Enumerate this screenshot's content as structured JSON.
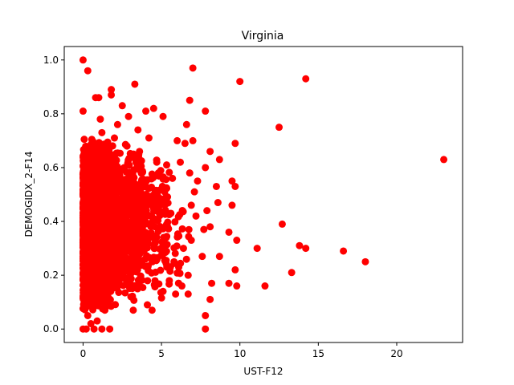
{
  "chart_data": {
    "type": "scatter",
    "title": "Virginia",
    "xlabel": "UST-F12",
    "ylabel": "DEMOGIDX_2-F14",
    "xlim": [
      -1.2,
      24.2
    ],
    "ylim": [
      -0.05,
      1.05
    ],
    "xticks": [
      0,
      5,
      10,
      15,
      20
    ],
    "yticks": [
      0.0,
      0.2,
      0.4,
      0.6,
      0.8,
      1.0
    ],
    "grid": false,
    "legend": "none",
    "marker_color": "#ff0000",
    "series": [
      {
        "points": [
          [
            0.0,
            1.0
          ],
          [
            0.3,
            0.96
          ],
          [
            0.0,
            0.81
          ],
          [
            0.8,
            0.86
          ],
          [
            1.0,
            0.86
          ],
          [
            1.8,
            0.89
          ],
          [
            1.8,
            0.87
          ],
          [
            3.3,
            0.91
          ],
          [
            7.0,
            0.97
          ],
          [
            10.0,
            0.92
          ],
          [
            14.2,
            0.93
          ],
          [
            6.8,
            0.85
          ],
          [
            12.5,
            0.75
          ],
          [
            23.0,
            0.63
          ],
          [
            7.8,
            0.81
          ],
          [
            6.6,
            0.76
          ],
          [
            9.7,
            0.69
          ],
          [
            7.0,
            0.7
          ],
          [
            8.1,
            0.66
          ],
          [
            8.7,
            0.63
          ],
          [
            9.5,
            0.55
          ],
          [
            9.7,
            0.53
          ],
          [
            8.5,
            0.53
          ],
          [
            8.6,
            0.47
          ],
          [
            9.5,
            0.46
          ],
          [
            7.9,
            0.44
          ],
          [
            8.1,
            0.38
          ],
          [
            9.3,
            0.36
          ],
          [
            9.8,
            0.33
          ],
          [
            9.7,
            0.22
          ],
          [
            8.7,
            0.27
          ],
          [
            12.7,
            0.39
          ],
          [
            11.1,
            0.3
          ],
          [
            13.8,
            0.31
          ],
          [
            14.2,
            0.3
          ],
          [
            13.3,
            0.21
          ],
          [
            16.6,
            0.29
          ],
          [
            18.0,
            0.25
          ],
          [
            11.6,
            0.16
          ],
          [
            9.8,
            0.16
          ],
          [
            9.3,
            0.17
          ],
          [
            8.2,
            0.17
          ],
          [
            8.1,
            0.11
          ],
          [
            7.8,
            0.05
          ],
          [
            7.8,
            0.0
          ],
          [
            0.0,
            0.0
          ],
          [
            0.2,
            0.0
          ],
          [
            0.7,
            0.0
          ],
          [
            1.2,
            0.0
          ],
          [
            1.7,
            0.0
          ],
          [
            0.5,
            0.02
          ],
          [
            0.9,
            0.03
          ],
          [
            0.3,
            0.05
          ],
          [
            0.6,
            0.08
          ],
          [
            0.2,
            0.66
          ],
          [
            0.4,
            0.6
          ],
          [
            1.4,
            0.64
          ],
          [
            2.5,
            0.83
          ],
          [
            2.9,
            0.79
          ],
          [
            4.0,
            0.81
          ],
          [
            4.5,
            0.82
          ],
          [
            5.1,
            0.79
          ],
          [
            6.0,
            0.7
          ],
          [
            6.5,
            0.69
          ],
          [
            6.2,
            0.62
          ],
          [
            6.8,
            0.58
          ],
          [
            7.3,
            0.55
          ],
          [
            7.8,
            0.6
          ],
          [
            7.1,
            0.51
          ],
          [
            6.9,
            0.46
          ],
          [
            7.2,
            0.42
          ],
          [
            7.7,
            0.37
          ],
          [
            6.4,
            0.3
          ],
          [
            6.9,
            0.33
          ],
          [
            7.6,
            0.27
          ],
          [
            6.7,
            0.2
          ],
          [
            6.3,
            0.16
          ],
          [
            5.5,
            0.18
          ],
          [
            5.1,
            0.14
          ],
          [
            4.1,
            0.09
          ],
          [
            3.2,
            0.07
          ],
          [
            4.4,
            0.07
          ],
          [
            5.9,
            0.13
          ],
          [
            6.7,
            0.13
          ],
          [
            5.8,
            0.25
          ],
          [
            5.3,
            0.34
          ],
          [
            5.6,
            0.43
          ],
          [
            5.2,
            0.51
          ],
          [
            5.7,
            0.56
          ],
          [
            4.7,
            0.62
          ],
          [
            4.2,
            0.71
          ],
          [
            3.5,
            0.74
          ],
          [
            2.8,
            0.68
          ],
          [
            2.0,
            0.71
          ],
          [
            1.2,
            0.73
          ],
          [
            0.6,
            0.7
          ],
          [
            1.1,
            0.78
          ],
          [
            2.2,
            0.76
          ],
          [
            3.6,
            0.66
          ],
          [
            4.8,
            0.58
          ]
        ]
      }
    ],
    "dense_regions": [
      {
        "x": [
          0.0,
          1.8
        ],
        "y": [
          0.05,
          0.72
        ],
        "count": 1500
      },
      {
        "x": [
          0.0,
          3.8
        ],
        "y": [
          0.08,
          0.7
        ],
        "count": 1200
      },
      {
        "x": [
          0.5,
          5.5
        ],
        "y": [
          0.1,
          0.68
        ],
        "count": 500
      },
      {
        "x": [
          1.0,
          6.8
        ],
        "y": [
          0.12,
          0.62
        ],
        "count": 220
      }
    ]
  }
}
